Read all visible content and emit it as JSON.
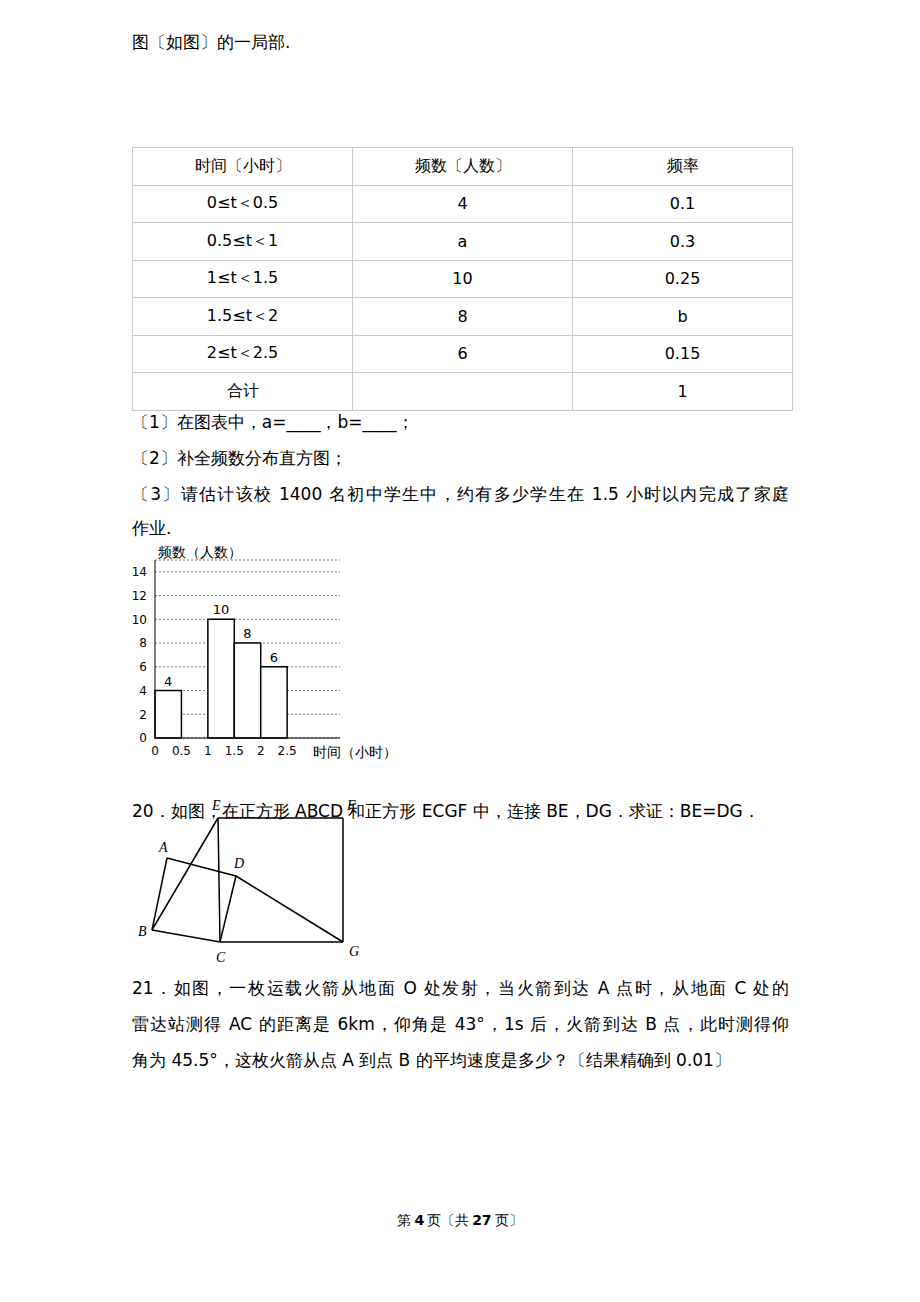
{
  "intro": "图〔如图〕的一局部.",
  "table": {
    "header": [
      "时间〔小时〕",
      "频数〔人数〕",
      "频率"
    ],
    "rows": [
      [
        "0≤t＜0.5",
        "4",
        "0.1"
      ],
      [
        "0.5≤t＜1",
        "a",
        "0.3"
      ],
      [
        "1≤t＜1.5",
        "10",
        "0.25"
      ],
      [
        "1.5≤t＜2",
        "8",
        "b"
      ],
      [
        "2≤t＜2.5",
        "6",
        "0.15"
      ],
      [
        "合计",
        null,
        "1"
      ]
    ]
  },
  "questions": [
    [
      "〔1〕在图表中，a=____，b=____；"
    ],
    [
      "〔2〕补全频数分布直方图；"
    ],
    [
      "〔3〕请估计该校 1400 名初中学生中，约有多少学生在 1.5 小时以内完成了家庭",
      "作业."
    ]
  ],
  "chart_data": {
    "type": "histogram",
    "x_label": "时间（小时）",
    "y_label": "频数（人数）",
    "bins": [
      0,
      0.5,
      1,
      1.5,
      2,
      2.5
    ],
    "values": [
      4,
      null,
      10,
      8,
      6
    ],
    "xlim": [
      0,
      3.5
    ],
    "ylim": [
      0,
      15
    ],
    "xticks": [
      0,
      0.5,
      1,
      1.5,
      2,
      2.5
    ],
    "yticks": [
      0,
      2,
      4,
      6,
      8,
      10,
      12,
      14
    ],
    "grid": true,
    "data_labels": true,
    "color": "#000000"
  },
  "problem20": {
    "lines": [
      "20．如图，在正方形 ABCD 和正方形 ECGF 中，连接 BE，DG．求证：BE=DG．"
    ],
    "points": [
      "A",
      "B",
      "C",
      "D",
      "E",
      "F",
      "G"
    ]
  },
  "problem21": {
    "lines": [
      "21．如图，一枚运载火箭从地面 O 处发射，当火箭到达 A 点时，从地面 C 处的",
      "雷达站测得 AC 的距离是 6km，仰角是 43°，1s 后，火箭到达 B 点，此时测得仰",
      "角为 45.5°，这枚火箭从点 A 到点 B 的平均速度是多少？〔结果精确到 0.01〕"
    ]
  },
  "footer": [
    "第",
    "4",
    "页〔共",
    "27",
    "页〕"
  ]
}
